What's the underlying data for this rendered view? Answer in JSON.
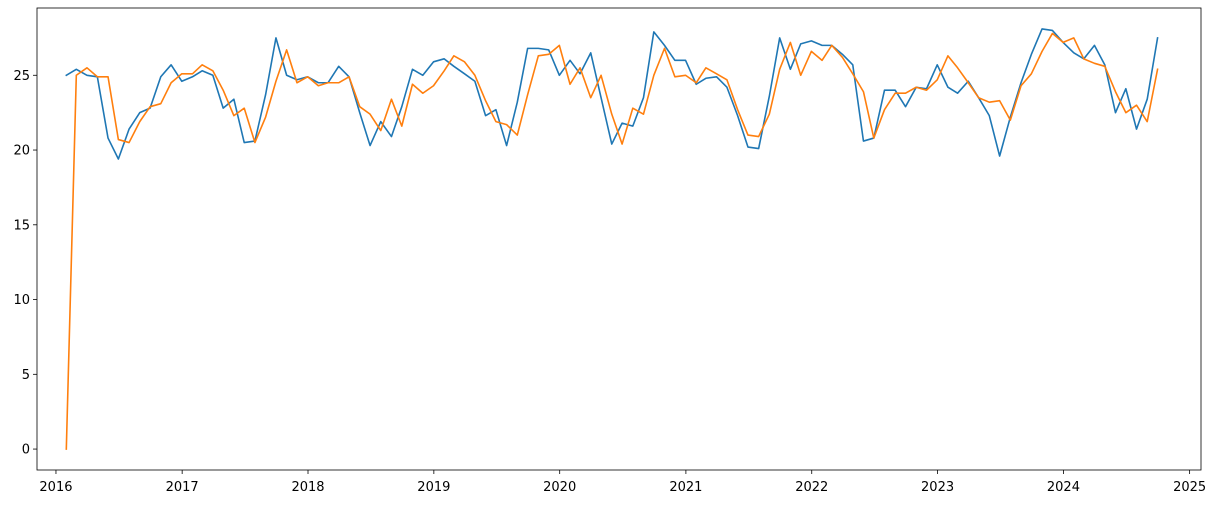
{
  "chart_data": {
    "type": "line",
    "title": "",
    "xlabel": "",
    "ylabel": "",
    "xlim": [
      "2015-11-07",
      "2025-02-03"
    ],
    "ylim": [
      -1.4,
      29.5
    ],
    "x_ticks": [
      "2016",
      "2017",
      "2018",
      "2019",
      "2020",
      "2021",
      "2022",
      "2023",
      "2024",
      "2025"
    ],
    "y_ticks": [
      "0",
      "5",
      "10",
      "15",
      "20",
      "25"
    ],
    "grid": false,
    "legend": "none",
    "x_dates": [
      "2016-01-31",
      "2016-02-29",
      "2016-03-31",
      "2016-04-30",
      "2016-05-31",
      "2016-06-30",
      "2016-07-31",
      "2016-08-31",
      "2016-09-30",
      "2016-10-31",
      "2016-11-30",
      "2016-12-31",
      "2017-01-31",
      "2017-02-28",
      "2017-03-31",
      "2017-04-30",
      "2017-05-31",
      "2017-06-30",
      "2017-07-31",
      "2017-08-31",
      "2017-09-30",
      "2017-10-31",
      "2017-11-30",
      "2017-12-31",
      "2018-01-31",
      "2018-02-28",
      "2018-03-31",
      "2018-04-30",
      "2018-05-31",
      "2018-06-30",
      "2018-07-31",
      "2018-08-31",
      "2018-09-30",
      "2018-10-31",
      "2018-11-30",
      "2018-12-31",
      "2019-01-31",
      "2019-02-28",
      "2019-03-31",
      "2019-04-30",
      "2019-05-31",
      "2019-06-30",
      "2019-07-31",
      "2019-08-31",
      "2019-09-30",
      "2019-10-31",
      "2019-11-30",
      "2019-12-31",
      "2020-01-31",
      "2020-02-29",
      "2020-03-31",
      "2020-04-30",
      "2020-05-31",
      "2020-06-30",
      "2020-07-31",
      "2020-08-31",
      "2020-09-30",
      "2020-10-31",
      "2020-11-30",
      "2020-12-31",
      "2021-01-31",
      "2021-02-28",
      "2021-03-31",
      "2021-04-30",
      "2021-05-31",
      "2021-06-30",
      "2021-07-31",
      "2021-08-31",
      "2021-09-30",
      "2021-10-31",
      "2021-11-30",
      "2021-12-31",
      "2022-01-31",
      "2022-02-28",
      "2022-03-31",
      "2022-04-30",
      "2022-05-31",
      "2022-06-30",
      "2022-07-31",
      "2022-08-31",
      "2022-09-30",
      "2022-10-31",
      "2022-11-30",
      "2022-12-31",
      "2023-01-31",
      "2023-02-28",
      "2023-03-31",
      "2023-04-30",
      "2023-05-31",
      "2023-06-30",
      "2023-07-31",
      "2023-08-31",
      "2023-09-30",
      "2023-10-31",
      "2023-11-30",
      "2023-12-31",
      "2024-01-31",
      "2024-02-29",
      "2024-03-31",
      "2024-04-30",
      "2024-05-31",
      "2024-06-30",
      "2024-07-31",
      "2024-08-31",
      "2024-09-30"
    ],
    "series": [
      {
        "color": "#1f77b4",
        "values": [
          25.0,
          25.4,
          25.0,
          24.9,
          20.8,
          19.4,
          21.4,
          22.5,
          22.8,
          24.9,
          25.7,
          24.6,
          24.9,
          25.3,
          25.0,
          22.8,
          23.4,
          20.5,
          20.6,
          23.7,
          27.5,
          25.0,
          24.7,
          24.9,
          24.5,
          24.5,
          25.6,
          24.9,
          22.5,
          20.3,
          21.9,
          20.9,
          22.9,
          25.4,
          25.0,
          25.9,
          26.1,
          25.6,
          25.1,
          24.6,
          22.3,
          22.7,
          20.3,
          23.2,
          26.8,
          26.8,
          26.7,
          25.0,
          26.0,
          25.1,
          26.5,
          23.5,
          20.4,
          21.8,
          21.6,
          23.5,
          27.9,
          27.0,
          26.0,
          26.0,
          24.4,
          24.8,
          24.9,
          24.2,
          22.3,
          20.2,
          20.1,
          23.6,
          27.5,
          25.4,
          27.1,
          27.3,
          27.0,
          27.0,
          26.4,
          25.7,
          20.6,
          20.8,
          24.0,
          24.0,
          22.9,
          24.2,
          24.1,
          25.7,
          24.2,
          23.8,
          24.6,
          23.5,
          22.3,
          19.6,
          22.2,
          24.5,
          26.4,
          28.1,
          28.0,
          27.2,
          26.5,
          26.1,
          27.0,
          25.7,
          22.5,
          24.1,
          21.4,
          23.4,
          27.5
        ]
      },
      {
        "color": "#ff7f0e",
        "values": [
          0.0,
          25.0,
          25.5,
          24.9,
          24.9,
          20.7,
          20.5,
          21.9,
          22.9,
          23.1,
          24.5,
          25.1,
          25.1,
          25.7,
          25.3,
          24.0,
          22.3,
          22.8,
          20.5,
          22.2,
          24.6,
          26.7,
          24.5,
          24.9,
          24.3,
          24.5,
          24.5,
          24.9,
          22.9,
          22.4,
          21.3,
          23.4,
          21.6,
          24.4,
          23.8,
          24.3,
          25.3,
          26.3,
          25.9,
          25.0,
          23.3,
          21.9,
          21.7,
          21.0,
          23.7,
          26.3,
          26.4,
          27.0,
          24.4,
          25.5,
          23.5,
          25.0,
          22.4,
          20.4,
          22.8,
          22.4,
          25.0,
          26.8,
          24.9,
          25.0,
          24.5,
          25.5,
          25.1,
          24.7,
          22.7,
          21.0,
          20.9,
          22.4,
          25.4,
          27.2,
          25.0,
          26.6,
          26.0,
          27.0,
          26.2,
          25.1,
          23.9,
          20.8,
          22.7,
          23.8,
          23.8,
          24.2,
          24.0,
          24.7,
          26.3,
          25.5,
          24.5,
          23.5,
          23.2,
          23.3,
          22.0,
          24.3,
          25.1,
          26.6,
          27.8,
          27.2,
          27.5,
          26.1,
          25.8,
          25.6,
          23.9,
          22.5,
          23.0,
          21.9,
          25.4
        ]
      }
    ]
  }
}
